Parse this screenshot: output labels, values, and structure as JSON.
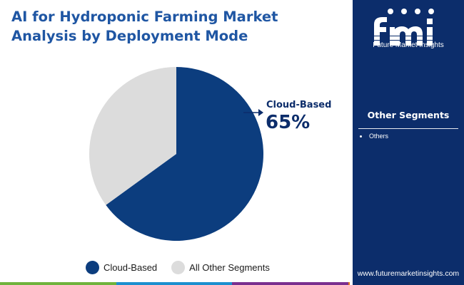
{
  "title": "AI for Hydroponic Farming Market Analysis by Deployment Mode",
  "chart_data": {
    "type": "pie",
    "title": "AI for Hydroponic Farming Market Analysis by Deployment Mode",
    "categories": [
      "Cloud-Based",
      "All Other Segments"
    ],
    "values": [
      65,
      35
    ],
    "unit": "%",
    "colors": [
      "#0c3d7e",
      "#dcdcdc"
    ],
    "annotation": {
      "label": "Cloud-Based",
      "value": "65%"
    },
    "legend_position": "bottom"
  },
  "legend": [
    {
      "label": "Cloud-Based",
      "color": "#0c3d7e"
    },
    {
      "label": "All Other Segments",
      "color": "#dcdcdc"
    }
  ],
  "sidebar": {
    "logo_text": "Future Market Insights",
    "segments_title": "Other Segments",
    "segments": [
      "Others"
    ],
    "url": "www.futuremarketinsights.com"
  },
  "bottom_bar_colors": [
    "#6fb33c",
    "#1c8fcf",
    "#7a2f8f",
    "#e8781a"
  ]
}
